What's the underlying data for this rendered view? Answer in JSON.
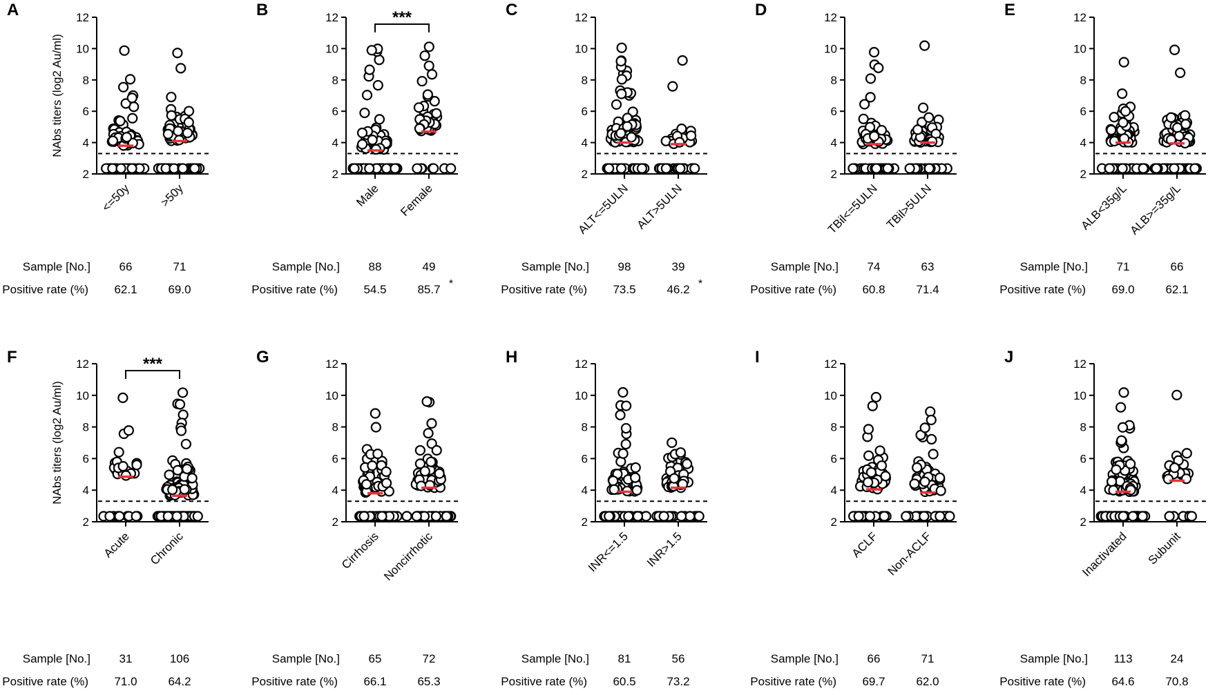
{
  "chart_data": [
    {
      "type": "scatter",
      "panel": "A",
      "ylabel": "NAbs titers (log2 Au/ml)",
      "ylim": [
        2,
        12
      ],
      "yticks": [
        2,
        4,
        6,
        8,
        10,
        12
      ],
      "cutoff": 3.3,
      "categories": [
        "<=50y",
        ">50y"
      ],
      "medians": [
        3.8,
        4.1
      ],
      "significance": "",
      "table": {
        "rows": [
          "Sample [No.]",
          "Positive rate (%)"
        ],
        "sample": [
          "66",
          "71"
        ],
        "positive_rate": [
          "62.1",
          "69.0"
        ],
        "rate_mark": ""
      }
    },
    {
      "type": "scatter",
      "panel": "B",
      "ylabel": "",
      "ylim": [
        2,
        12
      ],
      "yticks": [
        2,
        4,
        6,
        8,
        10,
        12
      ],
      "cutoff": 3.3,
      "categories": [
        "Male",
        "Female"
      ],
      "medians": [
        3.5,
        4.7
      ],
      "significance": "***",
      "table": {
        "rows": [
          "Sample [No.]",
          "Positive rate (%)"
        ],
        "sample": [
          "88",
          "49"
        ],
        "positive_rate": [
          "54.5",
          "85.7"
        ],
        "rate_mark": "*"
      }
    },
    {
      "type": "scatter",
      "panel": "C",
      "ylabel": "",
      "ylim": [
        2,
        12
      ],
      "yticks": [
        2,
        4,
        6,
        8,
        10,
        12
      ],
      "cutoff": 3.3,
      "categories": [
        "ALT<=5ULN",
        "ALT>5ULN"
      ],
      "medians": [
        4.0,
        3.9
      ],
      "significance": "",
      "table": {
        "rows": [
          "Sample [No.]",
          "Positive rate (%)"
        ],
        "sample": [
          "98",
          "39"
        ],
        "positive_rate": [
          "73.5",
          "46.2"
        ],
        "rate_mark": "*"
      }
    },
    {
      "type": "scatter",
      "panel": "D",
      "ylabel": "",
      "ylim": [
        2,
        12
      ],
      "yticks": [
        2,
        4,
        6,
        8,
        10,
        12
      ],
      "cutoff": 3.3,
      "categories": [
        "TBil<=5ULN",
        "TBil>5ULN"
      ],
      "medians": [
        3.9,
        4.0
      ],
      "significance": "",
      "table": {
        "rows": [
          "Sample [No.]",
          "Positive rate (%)"
        ],
        "sample": [
          "74",
          "63"
        ],
        "positive_rate": [
          "60.8",
          "71.4"
        ],
        "rate_mark": ""
      }
    },
    {
      "type": "scatter",
      "panel": "E",
      "ylabel": "",
      "ylim": [
        2,
        12
      ],
      "yticks": [
        2,
        4,
        6,
        8,
        10,
        12
      ],
      "cutoff": 3.3,
      "categories": [
        "ALB<35g/L",
        "ALB>=35g/L"
      ],
      "medians": [
        4.0,
        3.95
      ],
      "significance": "",
      "table": {
        "rows": [
          "Sample [No.]",
          "Positive rate (%)"
        ],
        "sample": [
          "71",
          "66"
        ],
        "positive_rate": [
          "69.0",
          "62.1"
        ],
        "rate_mark": ""
      }
    },
    {
      "type": "scatter",
      "panel": "F",
      "ylabel": "NAbs titers (log2 Au/ml)",
      "ylim": [
        2,
        12
      ],
      "yticks": [
        2,
        4,
        6,
        8,
        10,
        12
      ],
      "cutoff": 3.3,
      "categories": [
        "Acute",
        "Chronic"
      ],
      "medians": [
        4.85,
        3.65
      ],
      "significance": "***",
      "table": {
        "rows": [
          "Sample [No.]",
          "Positive rate (%)"
        ],
        "sample": [
          "31",
          "106"
        ],
        "positive_rate": [
          "71.0",
          "64.2"
        ],
        "rate_mark": ""
      }
    },
    {
      "type": "scatter",
      "panel": "G",
      "ylabel": "",
      "ylim": [
        2,
        12
      ],
      "yticks": [
        2,
        4,
        6,
        8,
        10,
        12
      ],
      "cutoff": 3.3,
      "categories": [
        "Cirrhosis",
        "Noncirrhotic"
      ],
      "medians": [
        3.8,
        4.15
      ],
      "significance": "",
      "table": {
        "rows": [
          "Sample [No.]",
          "Positive rate (%)"
        ],
        "sample": [
          "65",
          "72"
        ],
        "positive_rate": [
          "66.1",
          "65.3"
        ],
        "rate_mark": ""
      }
    },
    {
      "type": "scatter",
      "panel": "H",
      "ylabel": "",
      "ylim": [
        2,
        12
      ],
      "yticks": [
        2,
        4,
        6,
        8,
        10,
        12
      ],
      "cutoff": 3.3,
      "categories": [
        "INR<=1.5",
        "INR>1.5"
      ],
      "medians": [
        3.9,
        4.15
      ],
      "significance": "",
      "table": {
        "rows": [
          "Sample [No.]",
          "Positive rate (%)"
        ],
        "sample": [
          "81",
          "56"
        ],
        "positive_rate": [
          "60.5",
          "73.2"
        ],
        "rate_mark": ""
      }
    },
    {
      "type": "scatter",
      "panel": "I",
      "ylabel": "",
      "ylim": [
        2,
        12
      ],
      "yticks": [
        2,
        4,
        6,
        8,
        10,
        12
      ],
      "cutoff": 3.3,
      "categories": [
        "ACLF",
        "Non-ACLF"
      ],
      "medians": [
        4.05,
        3.85
      ],
      "significance": "",
      "table": {
        "rows": [
          "Sample [No.]",
          "Positive rate (%)"
        ],
        "sample": [
          "66",
          "71"
        ],
        "positive_rate": [
          "69.7",
          "62.0"
        ],
        "rate_mark": ""
      }
    },
    {
      "type": "scatter",
      "panel": "J",
      "ylabel": "",
      "ylim": [
        2,
        12
      ],
      "yticks": [
        2,
        4,
        6,
        8,
        10,
        12
      ],
      "cutoff": 3.3,
      "categories": [
        "Inactivated",
        "Subunit"
      ],
      "medians": [
        3.9,
        4.6
      ],
      "significance": "",
      "table": {
        "rows": [
          "Sample [No.]",
          "Positive rate (%)"
        ],
        "sample": [
          "113",
          "24"
        ],
        "positive_rate": [
          "64.6",
          "70.8"
        ],
        "rate_mark": ""
      }
    }
  ],
  "style": {
    "point_fill": "#ffffff",
    "point_stroke": "#000000",
    "median_color": "#e8333c",
    "axis_color": "#000000"
  }
}
